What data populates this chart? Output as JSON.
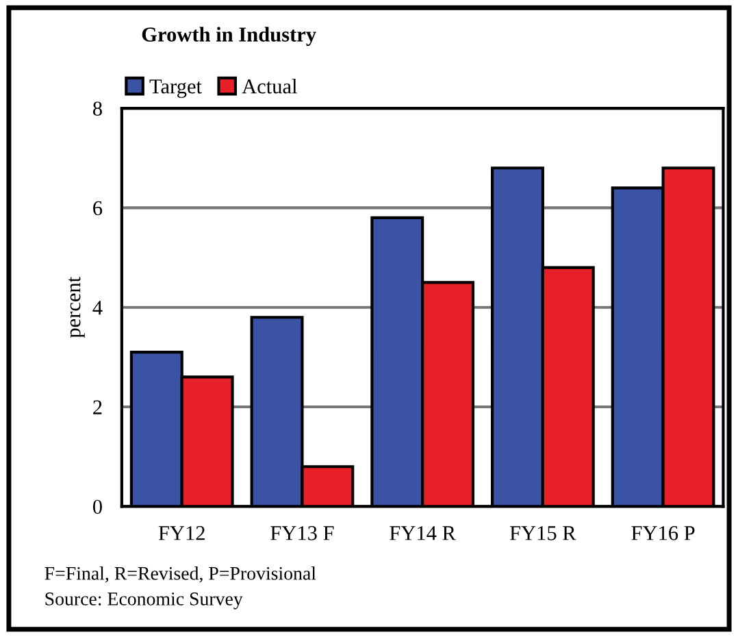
{
  "chart_data": {
    "type": "bar",
    "title": "Growth in Industry",
    "ylabel": "percent",
    "categories": [
      "FY12",
      "FY13 F",
      "FY14 R",
      "FY15 R",
      "FY16 P"
    ],
    "series": [
      {
        "name": "Target",
        "color": "#3a53a4",
        "values": [
          3.1,
          3.8,
          5.8,
          6.8,
          6.4
        ]
      },
      {
        "name": "Actual",
        "color": "#e8202a",
        "values": [
          2.6,
          0.8,
          4.5,
          4.8,
          6.8
        ]
      }
    ],
    "ylim": [
      0,
      8
    ],
    "yticks": [
      0,
      2,
      4,
      6,
      8
    ],
    "grid": "y",
    "legend": "top left",
    "annotations": [
      "F=Final, R=Revised, P=Provisional",
      "Source: Economic Survey"
    ]
  }
}
